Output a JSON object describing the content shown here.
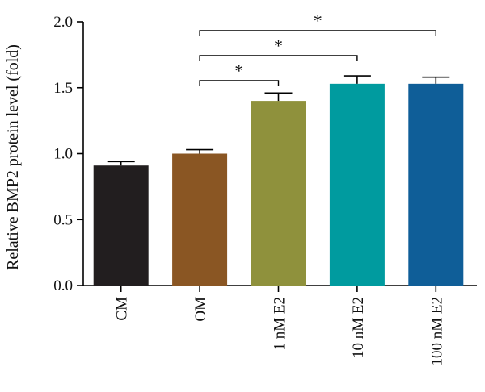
{
  "chart_data": {
    "type": "bar",
    "categories": [
      "CM",
      "OM",
      "1 nM E2",
      "10 nM E2",
      "100 nM E2"
    ],
    "values": [
      0.91,
      1.0,
      1.4,
      1.53,
      1.53
    ],
    "errors": [
      0.03,
      0.03,
      0.06,
      0.06,
      0.05
    ],
    "colors": [
      "#221e1f",
      "#8a5623",
      "#8f913c",
      "#009b9f",
      "#0f5e98"
    ],
    "ylabel": "Relative BMP2 protein level (fold)",
    "ylim": [
      0,
      2.0
    ],
    "yticks": [
      "0.0",
      "0.5",
      "1.0",
      "1.5",
      "2.0"
    ],
    "grid": false,
    "significance": [
      {
        "from": 1,
        "to": 2,
        "label": "*"
      },
      {
        "from": 1,
        "to": 3,
        "label": "*"
      },
      {
        "from": 1,
        "to": 4,
        "label": "*"
      }
    ]
  }
}
